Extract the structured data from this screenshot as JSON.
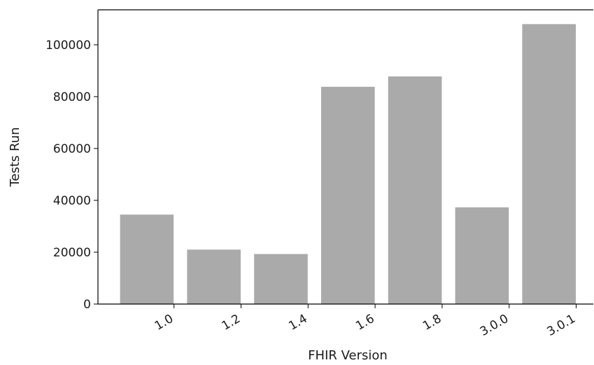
{
  "chart_data": {
    "type": "bar",
    "categories": [
      "1.0",
      "1.2",
      "1.4",
      "1.6",
      "1.8",
      "3.0.0",
      "3.0.1"
    ],
    "values": [
      34500,
      21000,
      19300,
      83800,
      87800,
      37300,
      108000
    ],
    "xlabel": "FHIR Version",
    "ylabel": "Tests Run",
    "ylim": [
      0,
      113500
    ],
    "yticks": [
      0,
      20000,
      40000,
      60000,
      80000,
      100000
    ],
    "ytick_labels": [
      "0",
      "20000",
      "40000",
      "60000",
      "80000",
      "100000"
    ],
    "grid": false,
    "bar_color": "#aaaaaa",
    "axis_color": "#000000"
  }
}
